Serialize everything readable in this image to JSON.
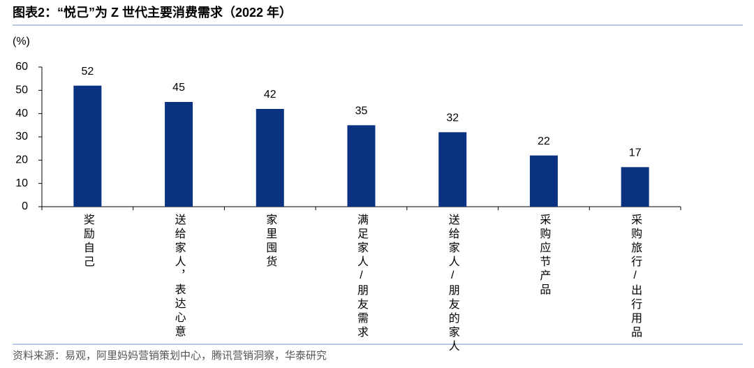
{
  "chart_data": {
    "type": "bar",
    "title": "图表2：“悦己”为 Z 世代主要消费需求（2022 年）",
    "y_label": "(%)",
    "categories": [
      "奖励自己",
      "送给家人，表达心意",
      "家里囤货",
      "满足家人/朋友需求",
      "送给家人/朋友的家人",
      "采购应节产品",
      "采购旅行/出行用品"
    ],
    "values": [
      52,
      45,
      42,
      35,
      32,
      22,
      17
    ],
    "color": "#0b3280",
    "ylim": [
      0,
      60
    ],
    "yticks": [
      0,
      10,
      20,
      30,
      40,
      50,
      60
    ],
    "grid": false,
    "source": "资料来源：易观，阿里妈妈营销策划中心，腾讯营销洞察，华泰研究"
  }
}
